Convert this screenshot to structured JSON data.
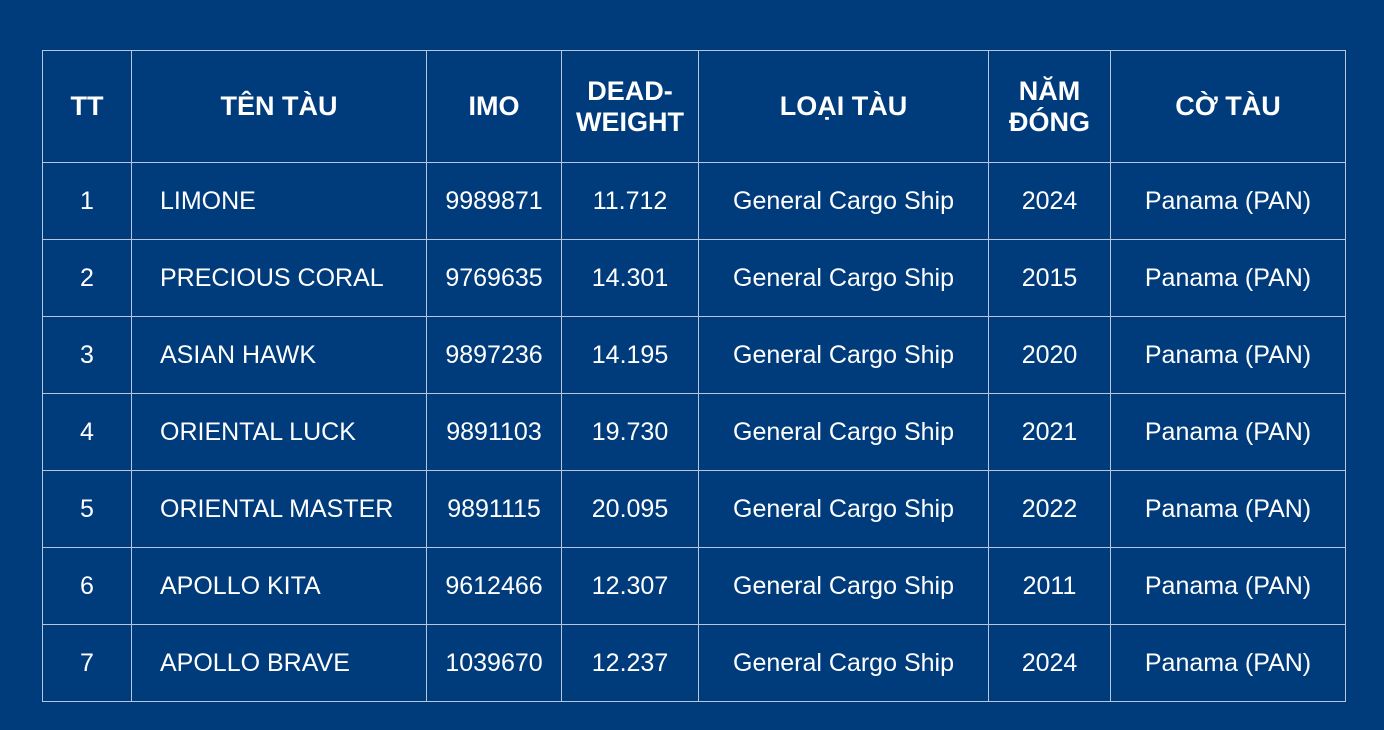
{
  "headers": {
    "tt": "TT",
    "name": "TÊN TÀU",
    "imo": "IMO",
    "deadweight": [
      "DEAD-",
      "WEIGHT"
    ],
    "type": "LOẠI TÀU",
    "year": [
      "NĂM",
      "ĐÓNG"
    ],
    "flag": "CỜ TÀU"
  },
  "rows": [
    {
      "tt": "1",
      "name": "LIMONE",
      "imo": "9989871",
      "deadweight": "11.712",
      "type": "General Cargo Ship",
      "year": "2024",
      "flag": "Panama (PAN)"
    },
    {
      "tt": "2",
      "name": "PRECIOUS CORAL",
      "imo": "9769635",
      "deadweight": "14.301",
      "type": "General Cargo Ship",
      "year": "2015",
      "flag": "Panama (PAN)"
    },
    {
      "tt": "3",
      "name": "ASIAN HAWK",
      "imo": "9897236",
      "deadweight": "14.195",
      "type": "General Cargo Ship",
      "year": "2020",
      "flag": "Panama (PAN)"
    },
    {
      "tt": "4",
      "name": "ORIENTAL LUCK",
      "imo": "9891103",
      "deadweight": "19.730",
      "type": "General Cargo Ship",
      "year": "2021",
      "flag": "Panama (PAN)"
    },
    {
      "tt": "5",
      "name": "ORIENTAL MASTER",
      "imo": "9891115",
      "deadweight": "20.095",
      "type": "General Cargo Ship",
      "year": "2022",
      "flag": "Panama (PAN)"
    },
    {
      "tt": "6",
      "name": "APOLLO KITA",
      "imo": "9612466",
      "deadweight": "12.307",
      "type": "General Cargo Ship",
      "year": "2011",
      "flag": "Panama (PAN)"
    },
    {
      "tt": "7",
      "name": "APOLLO BRAVE",
      "imo": "1039670",
      "deadweight": "12.237",
      "type": "General Cargo Ship",
      "year": "2024",
      "flag": "Panama (PAN)"
    }
  ],
  "colors": {
    "background": "#003c7c",
    "grid": "#b7c6dc",
    "text": "#ffffff"
  }
}
